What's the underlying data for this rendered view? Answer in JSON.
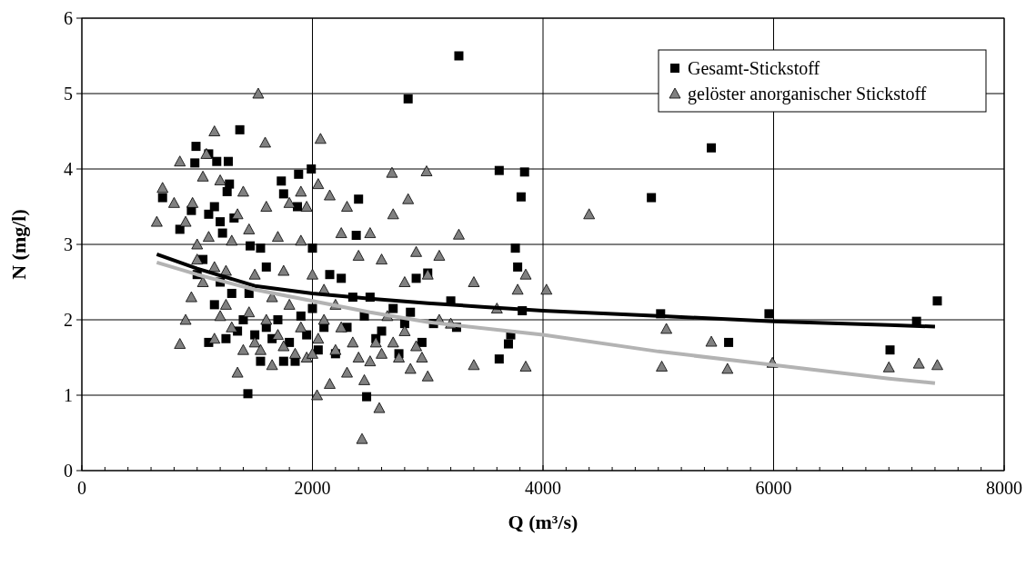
{
  "chart_data": {
    "type": "scatter",
    "xlabel": "Q (m³/s)",
    "ylabel": "N (mg/l)",
    "xlim": [
      0,
      8000
    ],
    "ylim": [
      0,
      6
    ],
    "xticks": [
      0,
      {
        "value": 200,
        "label": null
      },
      {
        "value": 400,
        "label": null
      },
      {
        "value": 600,
        "label": null
      },
      {
        "value": 800,
        "label": null
      },
      {
        "value": 1000,
        "label": null
      },
      {
        "value": 1200,
        "label": null
      },
      {
        "value": 1400,
        "label": null
      },
      {
        "value": 1600,
        "label": null
      },
      {
        "value": 1800,
        "label": null
      },
      2000,
      {
        "value": 2200,
        "label": null
      },
      {
        "value": 2400,
        "label": null
      },
      {
        "value": 2600,
        "label": null
      },
      {
        "value": 2800,
        "label": null
      },
      {
        "value": 3000,
        "label": null
      },
      {
        "value": 3200,
        "label": null
      },
      {
        "value": 3400,
        "label": null
      },
      {
        "value": 3600,
        "label": null
      },
      {
        "value": 3800,
        "label": null
      },
      4000,
      {
        "value": 4200,
        "label": null
      },
      {
        "value": 4400,
        "label": null
      },
      {
        "value": 4600,
        "label": null
      },
      {
        "value": 4800,
        "label": null
      },
      {
        "value": 5000,
        "label": null
      },
      {
        "value": 5200,
        "label": null
      },
      {
        "value": 5400,
        "label": null
      },
      {
        "value": 5600,
        "label": null
      },
      {
        "value": 5800,
        "label": null
      },
      6000,
      {
        "value": 6200,
        "label": null
      },
      {
        "value": 6400,
        "label": null
      },
      {
        "value": 6600,
        "label": null
      },
      {
        "value": 6800,
        "label": null
      },
      {
        "value": 7000,
        "label": null
      },
      {
        "value": 7200,
        "label": null
      },
      {
        "value": 7400,
        "label": null
      },
      {
        "value": 7600,
        "label": null
      },
      {
        "value": 7800,
        "label": null
      },
      8000
    ],
    "yticks": [
      0,
      1,
      2,
      3,
      4,
      5,
      6
    ],
    "grid": true,
    "legend": "top right",
    "series": [
      {
        "name": "Gesamt-Stickstoff",
        "marker": "square",
        "color": "#000000",
        "x": [
          3270,
          2830,
          5460,
          1370,
          990,
          980,
          1100,
          1170,
          1270,
          1990,
          1880,
          3620,
          3840,
          4940,
          3810,
          2400,
          1280,
          1730,
          1750,
          700,
          850,
          1100,
          1200,
          1260,
          1870,
          3760,
          3780,
          2380,
          1460,
          1550,
          5020,
          5960,
          7420,
          7240,
          7010,
          5610,
          3700,
          3620,
          3720,
          3820,
          1440,
          2470,
          1050,
          1000,
          1200,
          1150,
          1100,
          1250,
          1350,
          1400,
          1500,
          1600,
          1650,
          1700,
          1800,
          1850,
          1900,
          1950,
          2000,
          2050,
          2100,
          2150,
          2200,
          2250,
          2300,
          2350,
          2450,
          2500,
          2550,
          2600,
          2700,
          2750,
          2800,
          2850,
          2900,
          2950,
          3000,
          3050,
          3200,
          3250,
          1550,
          1750,
          1300,
          1450,
          1600,
          2000,
          1150,
          1220,
          1320,
          950
        ],
        "values": [
          5.5,
          4.93,
          4.28,
          4.52,
          4.3,
          4.08,
          4.2,
          4.1,
          4.1,
          4.0,
          3.93,
          3.98,
          3.96,
          3.62,
          3.63,
          3.6,
          3.8,
          3.84,
          3.67,
          3.62,
          3.2,
          3.4,
          3.3,
          3.7,
          3.5,
          2.95,
          2.7,
          3.12,
          2.98,
          2.95,
          2.08,
          2.08,
          2.25,
          1.98,
          1.6,
          1.7,
          1.68,
          1.48,
          1.8,
          2.12,
          1.02,
          0.98,
          2.8,
          2.6,
          2.5,
          2.2,
          1.7,
          1.75,
          1.85,
          2.0,
          1.8,
          1.9,
          1.75,
          2.0,
          1.7,
          1.45,
          2.05,
          1.8,
          2.15,
          1.6,
          1.9,
          2.6,
          1.55,
          2.55,
          1.9,
          2.3,
          2.05,
          2.3,
          1.75,
          1.85,
          2.15,
          1.55,
          1.95,
          2.1,
          2.55,
          1.7,
          2.62,
          1.95,
          2.25,
          1.9,
          1.45,
          1.45,
          2.35,
          2.35,
          2.7,
          2.95,
          3.5,
          3.15,
          3.35,
          3.45
        ]
      },
      {
        "name": "gelöster anorganischer Stickstoff",
        "marker": "triangle",
        "color": "#808080",
        "x": [
          1530,
          1590,
          1150,
          1080,
          2070,
          2690,
          2990,
          2700,
          2830,
          3270,
          4400,
          4030,
          3850,
          3780,
          3600,
          3400,
          3850,
          3400,
          5030,
          5070,
          5460,
          5600,
          5990,
          7000,
          7260,
          7420,
          2430,
          2580,
          2040,
          650,
          700,
          850,
          800,
          900,
          960,
          1000,
          1050,
          1200,
          1350,
          1400,
          1450,
          1500,
          1600,
          1700,
          1800,
          1900,
          1950,
          2050,
          2150,
          2250,
          2300,
          2400,
          2500,
          2600,
          2800,
          2900,
          3000,
          3100,
          850,
          900,
          950,
          1000,
          1050,
          1150,
          1250,
          1300,
          1350,
          1400,
          1450,
          1500,
          1550,
          1600,
          1650,
          1700,
          1750,
          1800,
          1850,
          1900,
          1950,
          2000,
          2050,
          2100,
          2150,
          2200,
          2250,
          2300,
          2350,
          2400,
          2450,
          2500,
          2550,
          2600,
          2650,
          2700,
          2750,
          2800,
          2850,
          2900,
          2950,
          3000,
          3100,
          3200,
          2000,
          2100,
          2200,
          1750,
          1650,
          1250,
          1100,
          1150,
          1200,
          1300,
          1900
        ],
        "values": [
          5.0,
          4.35,
          4.5,
          4.2,
          4.4,
          3.95,
          3.97,
          3.4,
          3.6,
          3.13,
          3.4,
          2.4,
          2.6,
          2.4,
          2.15,
          2.5,
          1.38,
          1.4,
          1.38,
          1.88,
          1.71,
          1.35,
          1.43,
          1.37,
          1.42,
          1.4,
          0.42,
          0.83,
          1.0,
          3.3,
          3.75,
          4.1,
          3.55,
          3.3,
          3.55,
          3.0,
          3.9,
          3.85,
          3.4,
          3.7,
          3.2,
          2.6,
          3.5,
          3.1,
          3.55,
          3.7,
          3.5,
          3.8,
          3.65,
          3.15,
          3.5,
          2.85,
          3.15,
          2.8,
          2.5,
          2.9,
          2.6,
          2.85,
          1.68,
          2.0,
          2.3,
          2.8,
          2.5,
          2.7,
          2.2,
          1.9,
          1.3,
          1.6,
          2.1,
          1.7,
          1.6,
          2.0,
          1.4,
          1.8,
          1.65,
          2.2,
          1.55,
          1.9,
          1.5,
          1.55,
          1.75,
          2.0,
          1.15,
          1.6,
          1.9,
          1.3,
          1.7,
          1.5,
          1.2,
          1.45,
          1.7,
          1.55,
          2.05,
          1.7,
          1.5,
          1.85,
          1.35,
          1.65,
          1.5,
          1.25,
          2.0,
          1.95,
          2.6,
          2.4,
          2.2,
          2.65,
          2.3,
          2.65,
          3.1,
          1.75,
          2.05,
          3.05,
          3.05
        ]
      },
      {
        "type": "line",
        "marker": "none",
        "color": "#000000",
        "x": [
          650,
          1000,
          1500,
          2000,
          2500,
          3000,
          3500,
          4000,
          5000,
          6000,
          7000,
          7400
        ],
        "values": [
          2.87,
          2.68,
          2.45,
          2.35,
          2.28,
          2.22,
          2.17,
          2.12,
          2.05,
          1.98,
          1.93,
          1.91
        ]
      },
      {
        "type": "line",
        "marker": "none",
        "color": "#b3b3b3",
        "x": [
          650,
          1000,
          1500,
          2000,
          2500,
          3000,
          4000,
          5000,
          6000,
          7000,
          7400
        ],
        "values": [
          2.76,
          2.6,
          2.4,
          2.25,
          2.1,
          1.97,
          1.8,
          1.58,
          1.4,
          1.22,
          1.16
        ]
      }
    ]
  }
}
